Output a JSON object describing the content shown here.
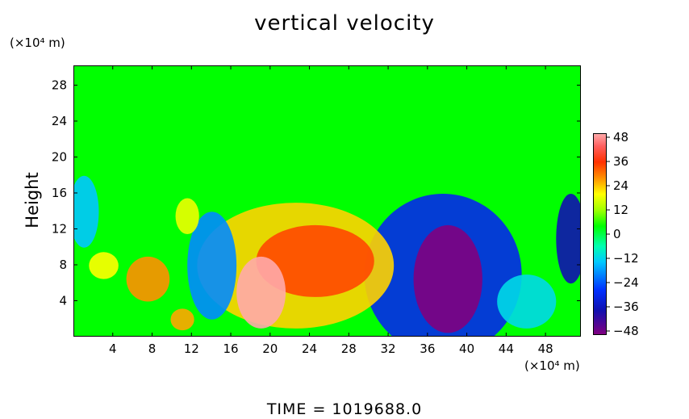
{
  "chart_data": {
    "type": "heatmap",
    "title": "vertical velocity",
    "ylabel": "Height",
    "x_unit": "(×10⁴ m)",
    "y_unit": "(×10⁴ m)",
    "x_ticks": [
      4,
      8,
      12,
      16,
      20,
      24,
      28,
      32,
      36,
      40,
      44,
      48
    ],
    "y_ticks": [
      4,
      8,
      12,
      16,
      20,
      24,
      28
    ],
    "xlim": [
      0,
      51.6
    ],
    "ylim": [
      0,
      30.2
    ],
    "colorbar": {
      "ticks": [
        48,
        36,
        24,
        12,
        0,
        -12,
        -24,
        -36,
        -48
      ],
      "range": [
        -48,
        48
      ],
      "colors": [
        "#800080",
        "#0030ff",
        "#00c8ff",
        "#00ff00",
        "#ffff00",
        "#ff3000",
        "#ffaaaa"
      ]
    },
    "features": [
      {
        "kind": "updraft",
        "x": 19,
        "y": 5,
        "rx": 2.5,
        "ry": 4,
        "value": 48
      },
      {
        "kind": "updraft",
        "x": 22.5,
        "y": 8,
        "rx": 10,
        "ry": 7,
        "value": 24
      },
      {
        "kind": "updraft",
        "x": 24.5,
        "y": 8.5,
        "rx": 6,
        "ry": 4,
        "value": 36
      },
      {
        "kind": "downdraft",
        "x": 38,
        "y": 6.5,
        "rx": 3.5,
        "ry": 6,
        "value": -48
      },
      {
        "kind": "downdraft",
        "x": 37.5,
        "y": 7,
        "rx": 8,
        "ry": 9,
        "value": -30
      },
      {
        "kind": "updraft",
        "x": 7.5,
        "y": 6.5,
        "rx": 2.2,
        "ry": 2.5,
        "value": 30
      },
      {
        "kind": "updraft",
        "x": 3,
        "y": 8,
        "rx": 1.5,
        "ry": 1.5,
        "value": 20
      },
      {
        "kind": "updraft",
        "x": 11.5,
        "y": 13.5,
        "rx": 1.2,
        "ry": 2,
        "value": 18
      },
      {
        "kind": "updraft",
        "x": 11,
        "y": 2,
        "rx": 1.2,
        "ry": 1.2,
        "value": 28
      },
      {
        "kind": "downdraft",
        "x": 50.5,
        "y": 11,
        "rx": 1.5,
        "ry": 5,
        "value": -36
      },
      {
        "kind": "downdraft",
        "x": 14,
        "y": 8,
        "rx": 2.5,
        "ry": 6,
        "value": -22
      },
      {
        "kind": "downdraft",
        "x": 1,
        "y": 14,
        "rx": 1.5,
        "ry": 4,
        "value": -18
      },
      {
        "kind": "downdraft",
        "x": 46,
        "y": 4,
        "rx": 3,
        "ry": 3,
        "value": -15
      }
    ]
  },
  "time_label": "TIME  =  1019688.0"
}
